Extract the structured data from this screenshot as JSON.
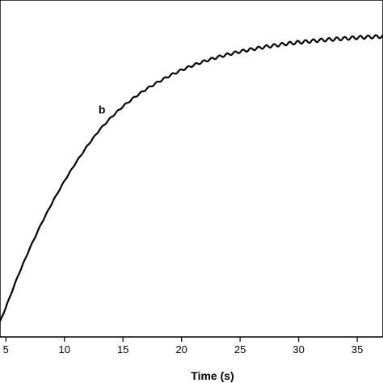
{
  "chart_data": {
    "type": "line",
    "xlabel": "Time (s)",
    "ylabel": "",
    "title": "",
    "xlim": [
      4.5,
      37.2
    ],
    "ylim": [
      0,
      1
    ],
    "x_ticks": [
      5,
      10,
      15,
      20,
      25,
      30,
      35
    ],
    "grid": false,
    "annotations": [
      {
        "text": "b",
        "x": 13.2,
        "y": 0.744
      }
    ],
    "series": [
      {
        "color": "#000000",
        "x": [
          4.5,
          5,
          6,
          7,
          8,
          9,
          10,
          11,
          12,
          13,
          14,
          15,
          16,
          17,
          18,
          19,
          20,
          21,
          22,
          23,
          24,
          25,
          26,
          27,
          28,
          29,
          30,
          31,
          32,
          33,
          34,
          35,
          36,
          37.2
        ],
        "y": [
          0.0,
          0.051,
          0.16,
          0.258,
          0.348,
          0.429,
          0.503,
          0.57,
          0.631,
          0.686,
          0.731,
          0.77,
          0.803,
          0.832,
          0.857,
          0.88,
          0.9,
          0.917,
          0.932,
          0.945,
          0.956,
          0.966,
          0.974,
          0.982,
          0.988,
          0.994,
          0.999,
          1.003,
          1.007,
          1.01,
          1.013,
          1.016,
          1.018,
          1.02
        ]
      }
    ]
  }
}
